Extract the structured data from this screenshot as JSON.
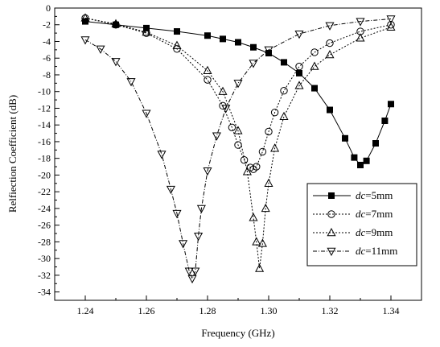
{
  "chart_data": {
    "type": "line",
    "xlabel": "Frequency (GHz)",
    "ylabel": "Relfiection Coefficient (dB)",
    "xlim": [
      1.23,
      1.35
    ],
    "ylim": [
      -35,
      0
    ],
    "xticks": [
      1.24,
      1.26,
      1.28,
      1.3,
      1.32,
      1.34
    ],
    "xtick_labels": [
      "1.24",
      "1.26",
      "1.28",
      "1.30",
      "1.32",
      "1.34"
    ],
    "yticks": [
      0,
      -2,
      -4,
      -6,
      -8,
      -10,
      -12,
      -14,
      -16,
      -18,
      -20,
      -22,
      -24,
      -26,
      -28,
      -30,
      -32,
      -34
    ],
    "ytick_labels": [
      "0",
      "-2",
      "-4",
      "-6",
      "-8",
      "-10",
      "-12",
      "-14",
      "-16",
      "-18",
      "-20",
      "-22",
      "-24",
      "-26",
      "-28",
      "-30",
      "-32",
      "-34"
    ],
    "grid": false,
    "legend_position": "lower-right",
    "series": [
      {
        "name": "dc=5mm",
        "legend_italic": "dc",
        "legend_rest": "=5mm",
        "marker": "filled-square",
        "line_style": "solid",
        "x": [
          1.24,
          1.25,
          1.26,
          1.27,
          1.28,
          1.285,
          1.29,
          1.295,
          1.3,
          1.305,
          1.31,
          1.315,
          1.32,
          1.325,
          1.328,
          1.33,
          1.332,
          1.335,
          1.338,
          1.34
        ],
        "y": [
          -1.6,
          -2.0,
          -2.4,
          -2.8,
          -3.3,
          -3.7,
          -4.1,
          -4.7,
          -5.4,
          -6.5,
          -7.8,
          -9.6,
          -12.2,
          -15.6,
          -17.9,
          -18.8,
          -18.3,
          -16.2,
          -13.5,
          -11.5
        ]
      },
      {
        "name": "dc=7mm",
        "legend_italic": "dc",
        "legend_rest": "=7mm",
        "marker": "open-circle",
        "line_style": "dotted",
        "x": [
          1.24,
          1.25,
          1.26,
          1.27,
          1.28,
          1.285,
          1.288,
          1.29,
          1.292,
          1.294,
          1.295,
          1.296,
          1.298,
          1.3,
          1.302,
          1.305,
          1.31,
          1.315,
          1.32,
          1.33,
          1.34
        ],
        "y": [
          -1.2,
          -2.0,
          -3.0,
          -4.9,
          -8.6,
          -11.7,
          -14.3,
          -16.4,
          -18.2,
          -19.1,
          -19.3,
          -19.0,
          -17.2,
          -14.8,
          -12.5,
          -9.9,
          -7.0,
          -5.3,
          -4.2,
          -2.8,
          -2.0
        ]
      },
      {
        "name": "dc=9mm",
        "legend_italic": "dc",
        "legend_rest": "=9mm",
        "marker": "open-triangle-up",
        "line_style": "dotted",
        "x": [
          1.24,
          1.25,
          1.26,
          1.27,
          1.28,
          1.285,
          1.29,
          1.293,
          1.295,
          1.296,
          1.297,
          1.298,
          1.299,
          1.3,
          1.302,
          1.305,
          1.31,
          1.315,
          1.32,
          1.33,
          1.34
        ],
        "y": [
          -1.2,
          -1.9,
          -2.9,
          -4.5,
          -7.5,
          -10.0,
          -14.7,
          -19.6,
          -25.1,
          -28.0,
          -31.2,
          -28.2,
          -24.0,
          -21.0,
          -16.8,
          -13.0,
          -9.3,
          -7.0,
          -5.6,
          -3.6,
          -2.3
        ]
      },
      {
        "name": "dc=11mm",
        "legend_italic": "dc",
        "legend_rest": "=11mm",
        "marker": "open-triangle-down",
        "line_style": "dash-dot",
        "x": [
          1.24,
          1.245,
          1.25,
          1.255,
          1.26,
          1.265,
          1.268,
          1.27,
          1.272,
          1.274,
          1.275,
          1.276,
          1.277,
          1.278,
          1.28,
          1.283,
          1.286,
          1.29,
          1.295,
          1.3,
          1.31,
          1.32,
          1.33,
          1.34
        ],
        "y": [
          -3.8,
          -4.9,
          -6.4,
          -8.8,
          -12.6,
          -17.5,
          -21.7,
          -24.6,
          -28.2,
          -31.5,
          -32.4,
          -31.5,
          -27.3,
          -24.0,
          -19.5,
          -15.3,
          -12.0,
          -9.0,
          -6.6,
          -5.0,
          -3.1,
          -2.1,
          -1.6,
          -1.3
        ]
      }
    ]
  }
}
